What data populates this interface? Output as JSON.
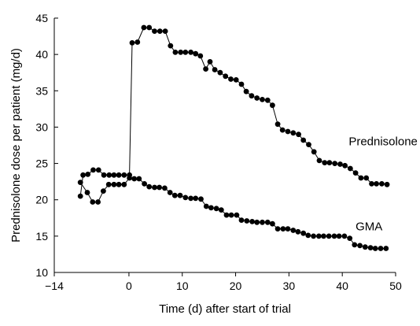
{
  "chart_data": {
    "type": "line",
    "xlabel": "Time (d) after start of trial",
    "ylabel": "Prednisolone dose per patient (mg/d)",
    "xlim": [
      -14,
      50
    ],
    "ylim": [
      10,
      45
    ],
    "xticks": [
      -14,
      0,
      10,
      20,
      30,
      40,
      50
    ],
    "yticks": [
      10,
      15,
      20,
      25,
      30,
      35,
      40,
      45
    ],
    "grid": false,
    "legend": "none",
    "series": [
      {
        "name": "Prednisolone",
        "label_at": [
          41.2,
          27.5
        ],
        "color": "#000000",
        "points": [
          [
            -9.1,
            20.5
          ],
          [
            -8.6,
            23.4
          ],
          [
            -7.7,
            23.5
          ],
          [
            -6.7,
            24.1
          ],
          [
            -5.7,
            24.1
          ],
          [
            -4.7,
            23.4
          ],
          [
            -3.7,
            23.4
          ],
          [
            -2.8,
            23.4
          ],
          [
            -1.9,
            23.4
          ],
          [
            -0.9,
            23.4
          ],
          [
            0.1,
            23.4
          ],
          [
            0.6,
            41.6
          ],
          [
            1.6,
            41.7
          ],
          [
            2.8,
            43.7
          ],
          [
            3.8,
            43.7
          ],
          [
            4.8,
            43.2
          ],
          [
            5.8,
            43.2
          ],
          [
            6.8,
            43.2
          ],
          [
            7.8,
            41.2
          ],
          [
            8.7,
            40.3
          ],
          [
            9.7,
            40.3
          ],
          [
            10.6,
            40.3
          ],
          [
            11.6,
            40.3
          ],
          [
            12.5,
            40.1
          ],
          [
            13.4,
            39.8
          ],
          [
            14.4,
            38.0
          ],
          [
            15.2,
            39.0
          ],
          [
            16.1,
            37.9
          ],
          [
            17.1,
            37.5
          ],
          [
            18.1,
            37.0
          ],
          [
            19.1,
            36.6
          ],
          [
            20.1,
            36.5
          ],
          [
            21.1,
            35.9
          ],
          [
            22.0,
            34.9
          ],
          [
            23.0,
            34.3
          ],
          [
            24.0,
            34.0
          ],
          [
            25.0,
            33.8
          ],
          [
            26.0,
            33.7
          ],
          [
            26.9,
            33.0
          ],
          [
            27.9,
            30.4
          ],
          [
            28.8,
            29.6
          ],
          [
            29.8,
            29.4
          ],
          [
            30.8,
            29.2
          ],
          [
            31.8,
            29.0
          ],
          [
            32.7,
            28.2
          ],
          [
            33.7,
            27.6
          ],
          [
            34.7,
            26.6
          ],
          [
            35.7,
            25.4
          ],
          [
            36.7,
            25.1
          ],
          [
            37.6,
            25.1
          ],
          [
            38.6,
            25.0
          ],
          [
            39.6,
            24.9
          ],
          [
            40.5,
            24.7
          ],
          [
            41.5,
            24.3
          ],
          [
            42.5,
            23.7
          ],
          [
            43.5,
            23.0
          ],
          [
            44.5,
            23.0
          ],
          [
            45.5,
            22.2
          ],
          [
            46.4,
            22.2
          ],
          [
            47.4,
            22.2
          ],
          [
            48.4,
            22.1
          ]
        ]
      },
      {
        "name": "GMA",
        "label_at": [
          42.5,
          15.8
        ],
        "color": "#000000",
        "points": [
          [
            -9.1,
            22.4
          ],
          [
            -7.8,
            21.0
          ],
          [
            -6.8,
            19.7
          ],
          [
            -5.8,
            19.7
          ],
          [
            -4.8,
            21.2
          ],
          [
            -3.8,
            22.1
          ],
          [
            -2.8,
            22.1
          ],
          [
            -1.9,
            22.1
          ],
          [
            -0.9,
            22.1
          ],
          [
            0.1,
            23.0
          ],
          [
            1.0,
            22.9
          ],
          [
            1.9,
            22.9
          ],
          [
            2.9,
            22.2
          ],
          [
            3.8,
            21.8
          ],
          [
            4.8,
            21.7
          ],
          [
            5.7,
            21.7
          ],
          [
            6.7,
            21.6
          ],
          [
            7.7,
            21.0
          ],
          [
            8.6,
            20.6
          ],
          [
            9.6,
            20.6
          ],
          [
            10.6,
            20.3
          ],
          [
            11.6,
            20.2
          ],
          [
            12.5,
            20.2
          ],
          [
            13.5,
            20.1
          ],
          [
            14.5,
            19.1
          ],
          [
            15.4,
            18.9
          ],
          [
            16.4,
            18.8
          ],
          [
            17.3,
            18.6
          ],
          [
            18.3,
            17.9
          ],
          [
            19.2,
            17.9
          ],
          [
            20.2,
            17.9
          ],
          [
            21.1,
            17.2
          ],
          [
            22.1,
            17.1
          ],
          [
            23.1,
            17.0
          ],
          [
            24.0,
            16.9
          ],
          [
            25.0,
            16.9
          ],
          [
            26.0,
            16.9
          ],
          [
            26.9,
            16.7
          ],
          [
            27.9,
            16.0
          ],
          [
            28.9,
            16.0
          ],
          [
            29.8,
            16.0
          ],
          [
            30.8,
            15.8
          ],
          [
            31.7,
            15.6
          ],
          [
            32.7,
            15.4
          ],
          [
            33.6,
            15.1
          ],
          [
            34.6,
            15.0
          ],
          [
            35.6,
            15.0
          ],
          [
            36.5,
            15.0
          ],
          [
            37.5,
            15.0
          ],
          [
            38.5,
            15.0
          ],
          [
            39.4,
            15.0
          ],
          [
            40.4,
            15.0
          ],
          [
            41.4,
            14.7
          ],
          [
            42.3,
            13.8
          ],
          [
            43.3,
            13.7
          ],
          [
            44.3,
            13.5
          ],
          [
            45.3,
            13.4
          ],
          [
            46.2,
            13.3
          ],
          [
            47.2,
            13.3
          ],
          [
            48.2,
            13.3
          ]
        ]
      }
    ]
  }
}
